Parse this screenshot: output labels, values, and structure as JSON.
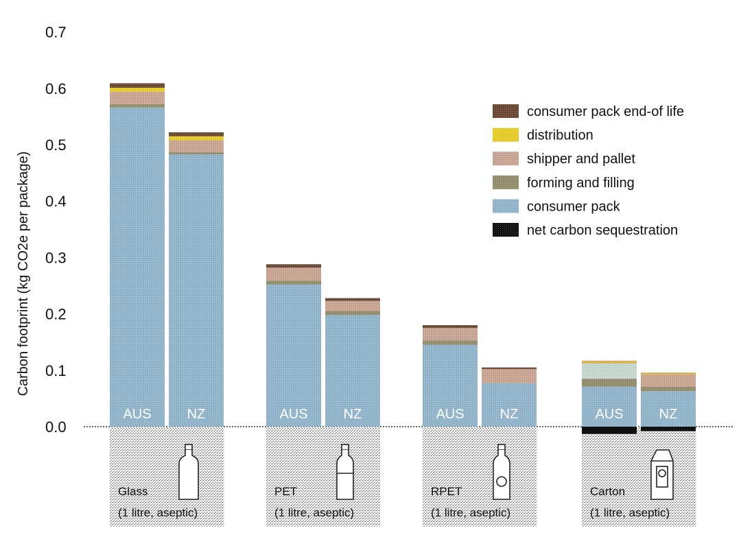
{
  "chart_data": {
    "type": "bar",
    "stacked": true,
    "ylabel": "Carbon footprint (kg CO2e per package)",
    "ylim": [
      0,
      0.7
    ],
    "yticks": [
      "0.0",
      "0.1",
      "0.2",
      "0.3",
      "0.4",
      "0.5",
      "0.6",
      "0.7"
    ],
    "legend_position": "top-right",
    "legend": [
      {
        "key": "end_of_life",
        "label": "consumer pack end-of life",
        "color": "#6b4a35"
      },
      {
        "key": "distribution",
        "label": "distribution",
        "color": "#e8cc2a"
      },
      {
        "key": "shipper",
        "label": "shipper and pallet",
        "color": "#c9a594"
      },
      {
        "key": "forming",
        "label": "forming and filling",
        "color": "#948d6e"
      },
      {
        "key": "consumer_pack",
        "label": "consumer pack",
        "color": "#92b5cb"
      },
      {
        "key": "sequestration",
        "label": "net carbon sequestration",
        "color": "#111111"
      }
    ],
    "groups": [
      {
        "name": "Glass",
        "sub": "(1 litre, aseptic)",
        "bars": [
          {
            "label": "AUS",
            "consumer_pack": 0.566,
            "forming": 0.006,
            "shipper": 0.022,
            "distribution": 0.007,
            "end_of_life": 0.008,
            "sequestration": 0
          },
          {
            "label": "NZ",
            "consumer_pack": 0.483,
            "forming": 0.004,
            "shipper": 0.021,
            "distribution": 0.007,
            "end_of_life": 0.007,
            "sequestration": 0
          }
        ]
      },
      {
        "name": "PET",
        "sub": "(1 litre, aseptic)",
        "bars": [
          {
            "label": "AUS",
            "consumer_pack": 0.252,
            "forming": 0.007,
            "shipper": 0.023,
            "distribution": 0,
            "end_of_life": 0.006,
            "sequestration": 0
          },
          {
            "label": "NZ",
            "consumer_pack": 0.198,
            "forming": 0.007,
            "shipper": 0.018,
            "distribution": 0,
            "end_of_life": 0.005,
            "sequestration": 0
          }
        ]
      },
      {
        "name": "RPET",
        "sub": "(1 litre, aseptic)",
        "bars": [
          {
            "label": "AUS",
            "consumer_pack": 0.145,
            "forming": 0.008,
            "shipper": 0.022,
            "distribution": 0,
            "end_of_life": 0.005,
            "sequestration": 0
          },
          {
            "label": "NZ",
            "consumer_pack": 0.077,
            "forming": 0,
            "shipper": 0.025,
            "distribution": 0,
            "end_of_life": 0.003,
            "sequestration": 0
          }
        ]
      },
      {
        "name": "Carton",
        "sub": "(1 litre, aseptic)",
        "bars": [
          {
            "label": "AUS",
            "consumer_pack": 0.071,
            "forming": 0.014,
            "shipper": 0.027,
            "distribution": 0.005,
            "end_of_life": 0,
            "sequestration": -0.013
          },
          {
            "label": "NZ",
            "consumer_pack": 0.063,
            "forming": 0.008,
            "shipper": 0.021,
            "distribution": 0.004,
            "end_of_life": 0,
            "sequestration": -0.008
          }
        ]
      }
    ]
  }
}
